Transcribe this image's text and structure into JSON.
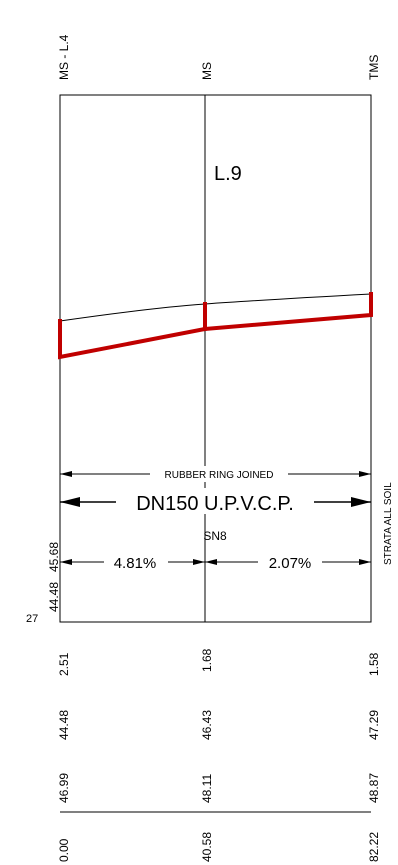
{
  "stations": {
    "left": "MS - L.4",
    "middle": "MS",
    "right": "TMS"
  },
  "line_label": "L.9",
  "pipe": {
    "joint_note": "RUBBER RING JOINED",
    "spec": "DN150 U.P.V.C.P.",
    "stiffness_class": "SN8",
    "grade_left": "4.81%",
    "grade_right": "2.07%"
  },
  "strata_note": "STRATA ALL SOIL",
  "left_levels": {
    "upper": "45.68",
    "lower": "44.48"
  },
  "side_number": "27",
  "data_rows": [
    {
      "row": "depth",
      "values": [
        "2.51",
        "1.68",
        "1.58"
      ]
    },
    {
      "row": "invert_level",
      "values": [
        "44.48",
        "46.43",
        "47.29"
      ]
    },
    {
      "row": "ground_level",
      "values": [
        "46.99",
        "48.11",
        "48.87"
      ]
    },
    {
      "row": "chainage",
      "values": [
        "0.00",
        "40.58",
        "82.22"
      ]
    }
  ],
  "colors": {
    "pipe": "#c00000",
    "lines": "#000000",
    "background": "#ffffff"
  }
}
